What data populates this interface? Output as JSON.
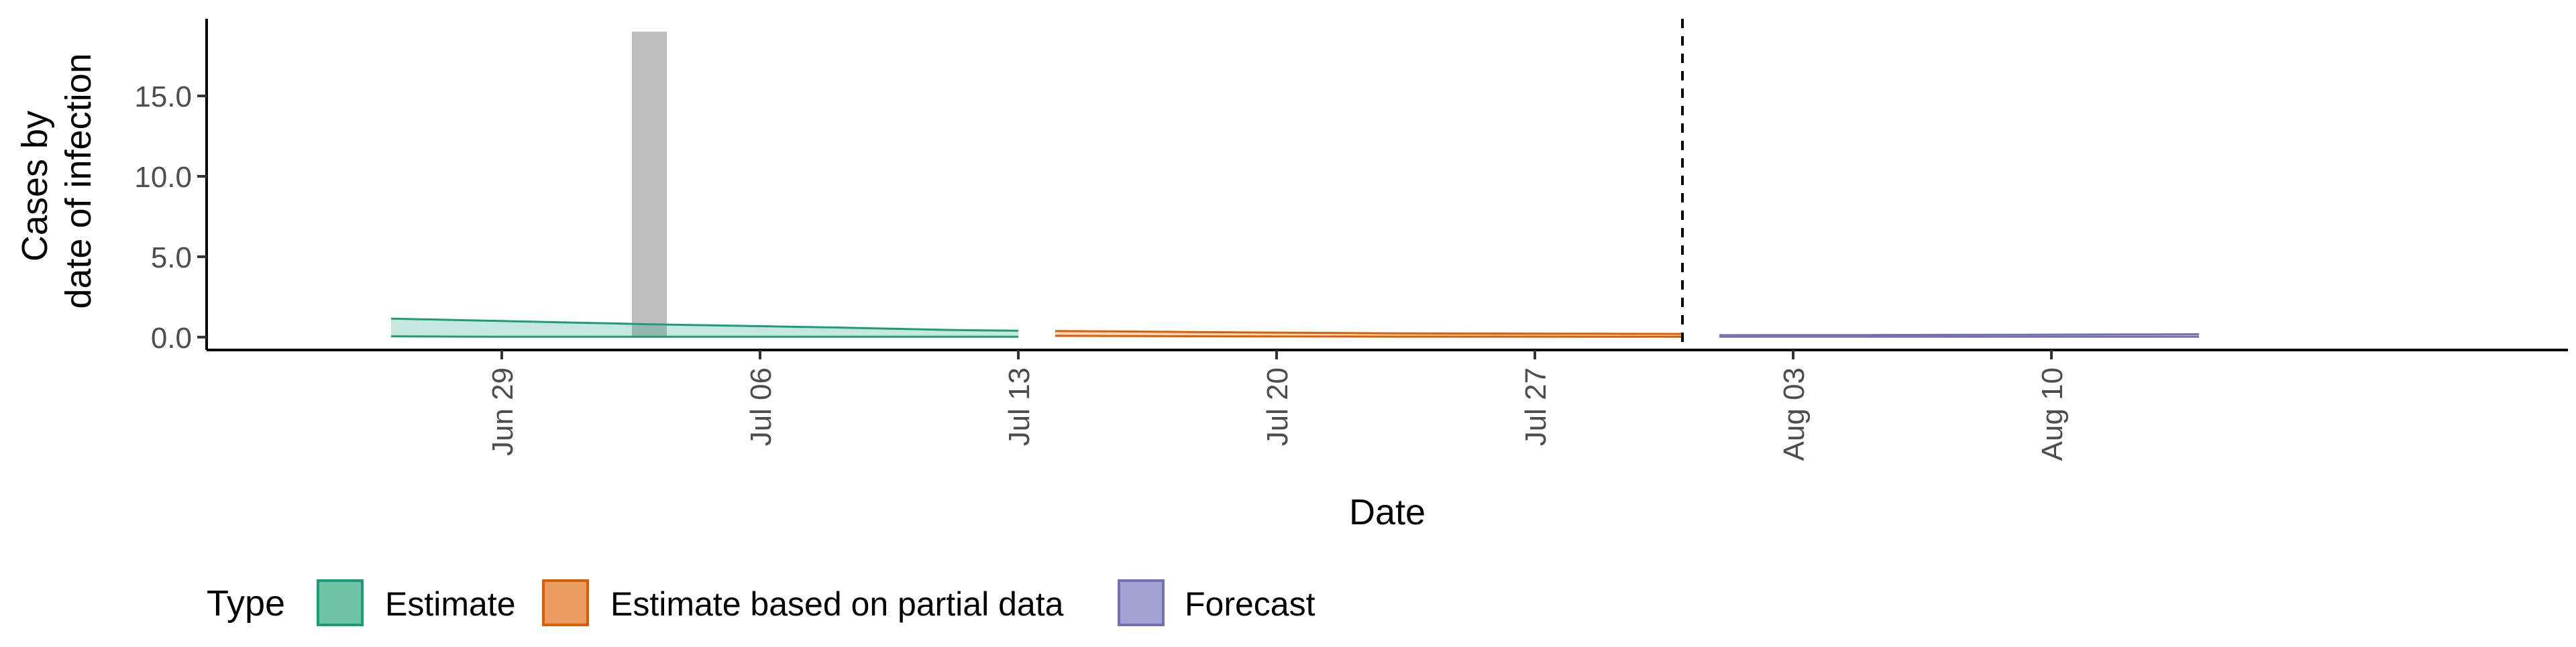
{
  "chart_data": {
    "type": "area",
    "title": "",
    "xlabel": "Date",
    "ylabel_lines": [
      "Cases by",
      "date of infection"
    ],
    "x_ticks": [
      "2020-06-29",
      "2020-07-06",
      "2020-07-13",
      "2020-07-20",
      "2020-07-27",
      "2020-08-03",
      "2020-08-10"
    ],
    "x_tick_labels": [
      "Jun 29",
      "Jul 06",
      "Jul 13",
      "Jul 20",
      "Jul 27",
      "Aug 03",
      "Aug 10"
    ],
    "y_ticks": [
      0,
      5,
      10,
      15
    ],
    "y_tick_labels": [
      "0.0",
      "5.0",
      "10.0",
      "15.0"
    ],
    "xlim": [
      "2020-06-21",
      "2020-08-24"
    ],
    "ylim": [
      -0.8,
      19.8
    ],
    "grid": false,
    "vline_date": "2020-07-31",
    "reported_cases": [
      {
        "date": "2020-07-03",
        "value": 19
      }
    ],
    "series": [
      {
        "name": "Estimate",
        "color": "#1B9E77",
        "fill": "#1B9E77",
        "x": [
          "2020-06-26",
          "2020-06-27",
          "2020-06-28",
          "2020-06-29",
          "2020-06-30",
          "2020-07-01",
          "2020-07-02",
          "2020-07-03",
          "2020-07-04",
          "2020-07-05",
          "2020-07-06",
          "2020-07-07",
          "2020-07-08",
          "2020-07-09",
          "2020-07-10",
          "2020-07-11",
          "2020-07-12",
          "2020-07-13"
        ],
        "lower": [
          0.05,
          0.04,
          0.03,
          0.02,
          0.02,
          0.02,
          0.02,
          0.02,
          0.02,
          0.02,
          0.02,
          0.02,
          0.02,
          0.02,
          0.02,
          0.02,
          0.02,
          0.02
        ],
        "upper": [
          1.15,
          1.1,
          1.05,
          1.0,
          0.95,
          0.9,
          0.85,
          0.8,
          0.76,
          0.72,
          0.68,
          0.64,
          0.6,
          0.55,
          0.5,
          0.45,
          0.42,
          0.4
        ]
      },
      {
        "name": "Estimate based on partial data",
        "color": "#D95F02",
        "fill": "#D95F02",
        "x": [
          "2020-07-14",
          "2020-07-17",
          "2020-07-20",
          "2020-07-23",
          "2020-07-26",
          "2020-07-29",
          "2020-07-31"
        ],
        "lower": [
          0.08,
          0.06,
          0.04,
          0.03,
          0.03,
          0.02,
          0.02
        ],
        "upper": [
          0.38,
          0.33,
          0.28,
          0.24,
          0.22,
          0.21,
          0.2
        ]
      },
      {
        "name": "Forecast",
        "color": "#7570B3",
        "fill": "#7570B3",
        "x": [
          "2020-08-01",
          "2020-08-05",
          "2020-08-09",
          "2020-08-13",
          "2020-08-14"
        ],
        "lower": [
          0.02,
          0.02,
          0.02,
          0.02,
          0.02
        ],
        "upper": [
          0.12,
          0.13,
          0.15,
          0.17,
          0.18
        ]
      }
    ]
  },
  "legend": {
    "title": "Type",
    "items": [
      {
        "label": "Estimate",
        "fill": "#6FC3A6",
        "stroke": "#1B9E77"
      },
      {
        "label": "Estimate based on partial data",
        "fill": "#E89C61",
        "stroke": "#D95F02"
      },
      {
        "label": "Forecast",
        "fill": "#A6A3D2",
        "stroke": "#7570B3"
      }
    ]
  }
}
